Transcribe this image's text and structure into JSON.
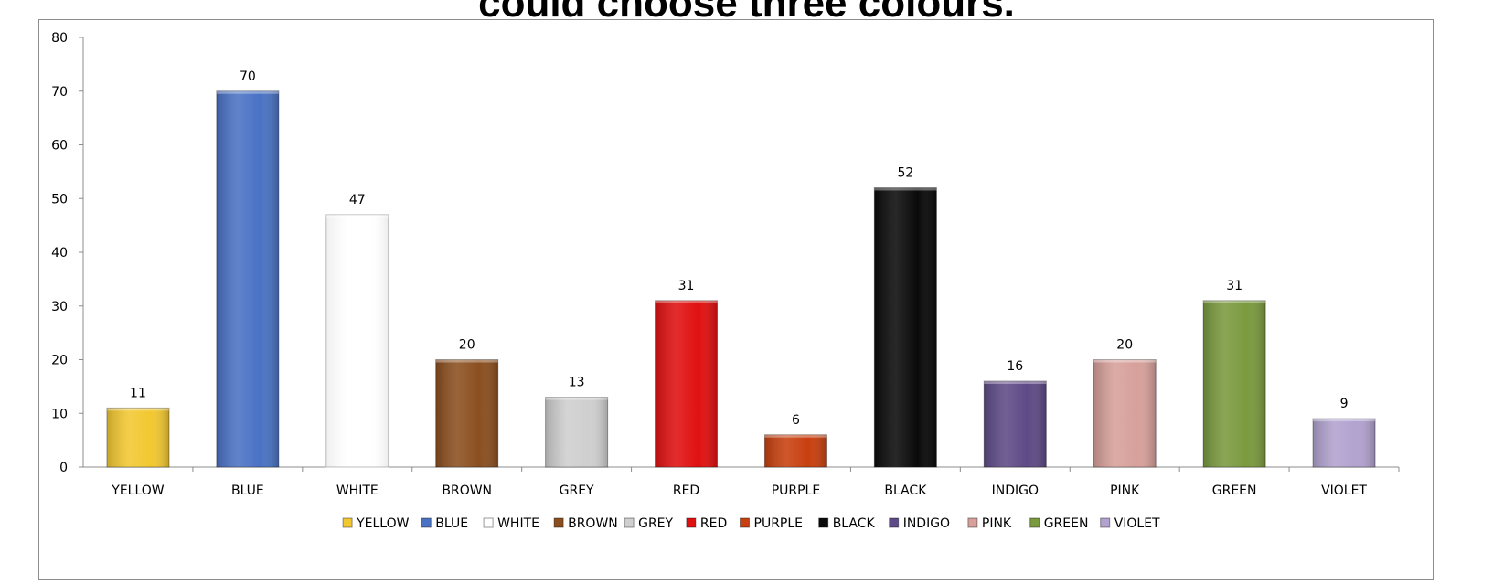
{
  "chart_data": {
    "type": "bar",
    "title": "could choose three colours.",
    "categories": [
      "YELLOW",
      "BLUE",
      "WHITE",
      "BROWN",
      "GREY",
      "RED",
      "PURPLE",
      "BLACK",
      "INDIGO",
      "PINK",
      "GREEN",
      "VIOLET"
    ],
    "values": [
      11,
      70,
      47,
      20,
      13,
      31,
      6,
      52,
      16,
      20,
      31,
      9
    ],
    "colors": [
      "#f2c831",
      "#4a72c4",
      "#ffffff",
      "#8b4f1f",
      "#cfcfcf",
      "#e01010",
      "#c8400f",
      "#0a0a0a",
      "#5e4a86",
      "#d7a09a",
      "#7a9a3e",
      "#b1a2cf"
    ],
    "ylim": [
      0,
      80
    ],
    "yticks": [
      0,
      10,
      20,
      30,
      40,
      50,
      60,
      70,
      80
    ],
    "legend": {
      "position": "bottom"
    },
    "grid": false,
    "xlabel": "",
    "ylabel": ""
  }
}
